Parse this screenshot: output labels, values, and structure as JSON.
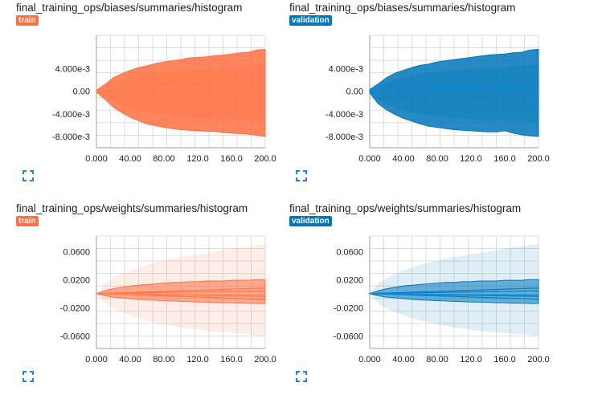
{
  "cards": [
    {
      "title": "final_training_ops/biases/summaries/histogram",
      "run": "train",
      "run_color": "#ff7043",
      "icon": "expand-icon"
    },
    {
      "title": "final_training_ops/biases/summaries/histogram",
      "run": "validation",
      "run_color": "#0077bb",
      "icon": "expand-icon"
    },
    {
      "title": "final_training_ops/weights/summaries/histogram",
      "run": "train",
      "run_color": "#ff7043",
      "icon": "expand-icon"
    },
    {
      "title": "final_training_ops/weights/summaries/histogram",
      "run": "validation",
      "run_color": "#0077bb",
      "icon": "expand-icon"
    }
  ],
  "chart_data": [
    {
      "type": "area",
      "title": "final_training_ops/biases/summaries/histogram",
      "run": "train",
      "color": "#ff7043",
      "xlim": [
        0,
        200
      ],
      "ylim": [
        -0.01,
        0.0099
      ],
      "x_ticks": [
        "0.000",
        "40.00",
        "80.00",
        "120.0",
        "160.0",
        "200.0"
      ],
      "y_ticks": [
        {
          "value": 0.004,
          "label": "4.000e-3"
        },
        {
          "value": 0.0,
          "label": "0.00"
        },
        {
          "value": -0.004,
          "label": "-4.000e-3"
        },
        {
          "value": -0.008,
          "label": "-8.000e-3"
        }
      ],
      "grid": true,
      "x": [
        0,
        10,
        20,
        30,
        40,
        50,
        60,
        70,
        80,
        90,
        100,
        110,
        120,
        130,
        140,
        150,
        160,
        170,
        180,
        190,
        200
      ],
      "upper": [
        0.0002,
        0.0012,
        0.0024,
        0.0031,
        0.0037,
        0.0042,
        0.0045,
        0.0049,
        0.0052,
        0.0054,
        0.0056,
        0.0059,
        0.006,
        0.0061,
        0.0063,
        0.0064,
        0.0066,
        0.0068,
        0.0069,
        0.0073,
        0.0074
      ],
      "median": [
        0.0,
        0.0003,
        0.0006,
        0.0007,
        0.0008,
        0.0008,
        0.0008,
        0.0007,
        0.0007,
        0.0007,
        0.0008,
        0.0007,
        0.0007,
        0.0006,
        0.0005,
        0.0004,
        0.0003,
        0.0004,
        0.0005,
        0.0004,
        0.0004
      ],
      "lower": [
        -0.0002,
        -0.0014,
        -0.0028,
        -0.0038,
        -0.0046,
        -0.0052,
        -0.0058,
        -0.0061,
        -0.0064,
        -0.0066,
        -0.0068,
        -0.0069,
        -0.007,
        -0.0071,
        -0.0071,
        -0.0073,
        -0.0074,
        -0.0075,
        -0.0076,
        -0.0078,
        -0.008
      ],
      "inner_upper": [
        0.0001,
        0.0008,
        0.0015,
        0.002,
        0.0024,
        0.0027,
        0.003,
        0.0032,
        0.0034,
        0.0035,
        0.0036,
        0.0037,
        0.0038,
        0.0039,
        0.004,
        0.0041,
        0.0042,
        0.0043,
        0.0044,
        0.0046,
        0.0047
      ],
      "inner_lower": [
        -0.0001,
        -0.0009,
        -0.0018,
        -0.0025,
        -0.003,
        -0.0034,
        -0.0038,
        -0.004,
        -0.0042,
        -0.0043,
        -0.0045,
        -0.0046,
        -0.0047,
        -0.0048,
        -0.0048,
        -0.0049,
        -0.005,
        -0.005,
        -0.0051,
        -0.0052,
        -0.0053
      ]
    },
    {
      "type": "area",
      "title": "final_training_ops/biases/summaries/histogram",
      "run": "validation",
      "color": "#0077bb",
      "xlim": [
        0,
        200
      ],
      "ylim": [
        -0.01,
        0.0099
      ],
      "x_ticks": [
        "0.000",
        "40.00",
        "80.00",
        "120.0",
        "160.0",
        "200.0"
      ],
      "y_ticks": [
        {
          "value": 0.004,
          "label": "4.000e-3"
        },
        {
          "value": 0.0,
          "label": "0.00"
        },
        {
          "value": -0.004,
          "label": "-4.000e-3"
        },
        {
          "value": -0.008,
          "label": "-8.000e-3"
        }
      ],
      "grid": true,
      "x": [
        0,
        10,
        20,
        30,
        40,
        50,
        60,
        70,
        80,
        90,
        100,
        110,
        120,
        130,
        140,
        150,
        160,
        170,
        180,
        190,
        200
      ],
      "upper": [
        0.0003,
        0.0013,
        0.0024,
        0.0032,
        0.0037,
        0.0042,
        0.0046,
        0.0048,
        0.0052,
        0.0054,
        0.0056,
        0.0058,
        0.006,
        0.0062,
        0.0064,
        0.0065,
        0.0066,
        0.0068,
        0.0069,
        0.0073,
        0.0074
      ],
      "median": [
        0.0,
        0.0007,
        0.0009,
        0.0009,
        0.0008,
        0.0008,
        0.0009,
        0.001,
        0.0007,
        0.0008,
        0.0008,
        0.0007,
        0.0007,
        0.0006,
        0.0005,
        0.0004,
        0.0004,
        0.0004,
        0.0004,
        0.0004,
        0.0004
      ],
      "lower": [
        -0.0003,
        -0.0022,
        -0.0033,
        -0.0041,
        -0.0048,
        -0.0053,
        -0.0058,
        -0.0062,
        -0.0064,
        -0.0066,
        -0.0068,
        -0.0069,
        -0.007,
        -0.0071,
        -0.0072,
        -0.0072,
        -0.007,
        -0.0074,
        -0.0077,
        -0.0079,
        -0.008
      ],
      "inner_upper": [
        0.0002,
        0.0009,
        0.0016,
        0.0021,
        0.0025,
        0.0028,
        0.0031,
        0.0033,
        0.0035,
        0.0036,
        0.0037,
        0.0038,
        0.0039,
        0.004,
        0.0041,
        0.0042,
        0.0043,
        0.0044,
        0.0045,
        0.0046,
        0.0047
      ],
      "inner_lower": [
        -0.0002,
        -0.0015,
        -0.0023,
        -0.0028,
        -0.0033,
        -0.0037,
        -0.004,
        -0.0042,
        -0.0044,
        -0.0046,
        -0.0047,
        -0.0048,
        -0.0049,
        -0.005,
        -0.0051,
        -0.0051,
        -0.005,
        -0.0052,
        -0.0053,
        -0.0054,
        -0.0055
      ]
    },
    {
      "type": "area",
      "title": "final_training_ops/weights/summaries/histogram",
      "run": "train",
      "color": "#ff7043",
      "xlim": [
        0,
        200
      ],
      "ylim": [
        -0.078,
        0.082
      ],
      "x_ticks": [
        "0.000",
        "40.00",
        "80.00",
        "120.0",
        "160.0",
        "200.0"
      ],
      "y_ticks": [
        {
          "value": 0.06,
          "label": "0.0600"
        },
        {
          "value": 0.02,
          "label": "0.0200"
        },
        {
          "value": -0.02,
          "label": "-0.0200"
        },
        {
          "value": -0.06,
          "label": "-0.0600"
        }
      ],
      "grid": true,
      "x": [
        0,
        10,
        20,
        30,
        40,
        50,
        60,
        70,
        80,
        90,
        100,
        110,
        120,
        130,
        140,
        150,
        160,
        170,
        180,
        190,
        200
      ],
      "outer_upper": [
        0.0,
        0.015,
        0.022,
        0.028,
        0.033,
        0.037,
        0.041,
        0.044,
        0.047,
        0.05,
        0.052,
        0.054,
        0.056,
        0.058,
        0.06,
        0.062,
        0.064,
        0.066,
        0.067,
        0.069,
        0.07
      ],
      "outer_lower": [
        0.0,
        -0.014,
        -0.021,
        -0.026,
        -0.031,
        -0.035,
        -0.038,
        -0.041,
        -0.044,
        -0.046,
        -0.048,
        -0.05,
        -0.051,
        -0.053,
        -0.054,
        -0.055,
        -0.056,
        -0.057,
        -0.058,
        -0.059,
        -0.06
      ],
      "upper": [
        0.0,
        0.004,
        0.007,
        0.009,
        0.011,
        0.012,
        0.013,
        0.014,
        0.015,
        0.016,
        0.016,
        0.017,
        0.017,
        0.018,
        0.018,
        0.018,
        0.019,
        0.019,
        0.019,
        0.02,
        0.02
      ],
      "median": [
        0.0,
        -0.0003,
        -0.0005,
        -0.0007,
        -0.0009,
        -0.001,
        -0.0011,
        -0.0012,
        -0.0013,
        -0.0014,
        -0.0015,
        -0.0016,
        -0.0016,
        -0.0017,
        -0.0017,
        -0.0018,
        -0.0018,
        -0.0019,
        -0.0019,
        -0.002,
        -0.002
      ],
      "lower": [
        0.0,
        -0.003,
        -0.005,
        -0.006,
        -0.007,
        -0.008,
        -0.009,
        -0.0095,
        -0.01,
        -0.0105,
        -0.011,
        -0.0115,
        -0.012,
        -0.012,
        -0.0125,
        -0.013,
        -0.013,
        -0.0135,
        -0.0135,
        -0.014,
        -0.014
      ],
      "bands": [
        0.008,
        0.004,
        -0.004,
        -0.008
      ]
    },
    {
      "type": "area",
      "title": "final_training_ops/weights/summaries/histogram",
      "run": "validation",
      "color": "#0077bb",
      "xlim": [
        0,
        200
      ],
      "ylim": [
        -0.078,
        0.082
      ],
      "x_ticks": [
        "0.000",
        "40.00",
        "80.00",
        "120.0",
        "160.0",
        "200.0"
      ],
      "y_ticks": [
        {
          "value": 0.06,
          "label": "0.0600"
        },
        {
          "value": 0.02,
          "label": "0.0200"
        },
        {
          "value": -0.02,
          "label": "-0.0200"
        },
        {
          "value": -0.06,
          "label": "-0.0600"
        }
      ],
      "grid": true,
      "x": [
        0,
        10,
        20,
        30,
        40,
        50,
        60,
        70,
        80,
        90,
        100,
        110,
        120,
        130,
        140,
        150,
        160,
        170,
        180,
        190,
        200
      ],
      "outer_upper": [
        0.0,
        0.015,
        0.022,
        0.028,
        0.033,
        0.037,
        0.041,
        0.044,
        0.047,
        0.05,
        0.052,
        0.054,
        0.056,
        0.058,
        0.06,
        0.062,
        0.064,
        0.066,
        0.067,
        0.069,
        0.07
      ],
      "outer_lower": [
        0.0,
        -0.014,
        -0.021,
        -0.026,
        -0.031,
        -0.035,
        -0.038,
        -0.041,
        -0.044,
        -0.046,
        -0.048,
        -0.05,
        -0.051,
        -0.053,
        -0.054,
        -0.055,
        -0.056,
        -0.057,
        -0.058,
        -0.059,
        -0.06
      ],
      "upper": [
        0.0,
        0.004,
        0.007,
        0.009,
        0.011,
        0.012,
        0.013,
        0.014,
        0.015,
        0.016,
        0.016,
        0.017,
        0.017,
        0.018,
        0.018,
        0.018,
        0.019,
        0.019,
        0.019,
        0.02,
        0.02
      ],
      "median": [
        0.0,
        -0.0003,
        -0.0005,
        -0.0007,
        -0.0009,
        -0.001,
        -0.0011,
        -0.0012,
        -0.0013,
        -0.0014,
        -0.0015,
        -0.0016,
        -0.0016,
        -0.0017,
        -0.0017,
        -0.0018,
        -0.0018,
        -0.0019,
        -0.0019,
        -0.002,
        -0.002
      ],
      "lower": [
        0.0,
        -0.003,
        -0.005,
        -0.006,
        -0.007,
        -0.008,
        -0.009,
        -0.0095,
        -0.01,
        -0.0105,
        -0.011,
        -0.0115,
        -0.012,
        -0.012,
        -0.0125,
        -0.013,
        -0.013,
        -0.0135,
        -0.0135,
        -0.014,
        -0.014
      ],
      "bands": [
        0.008,
        0.004,
        -0.004,
        -0.008
      ]
    }
  ]
}
